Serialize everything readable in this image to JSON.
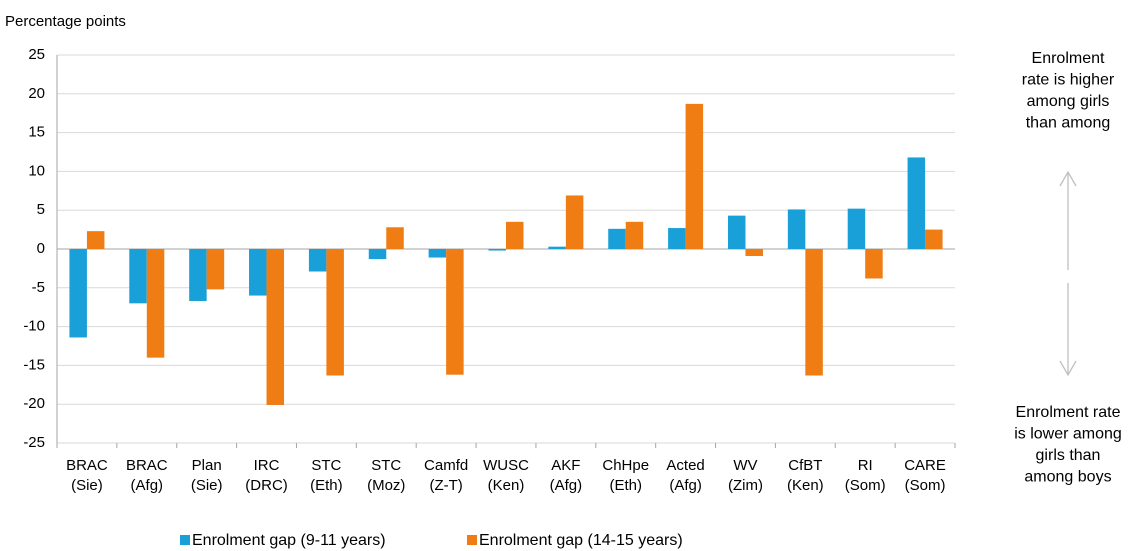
{
  "chart_data": {
    "type": "bar",
    "y_label": "Percentage points",
    "categories": [
      [
        "BRAC",
        "(Sie)"
      ],
      [
        "BRAC",
        "(Afg)"
      ],
      [
        "Plan",
        "(Sie)"
      ],
      [
        "IRC",
        "(DRC)"
      ],
      [
        "STC",
        "(Eth)"
      ],
      [
        "STC",
        "(Moz)"
      ],
      [
        "Camfd",
        "(Z-T)"
      ],
      [
        "WUSC",
        "(Ken)"
      ],
      [
        "AKF",
        "(Afg)"
      ],
      [
        "ChHpe",
        "(Eth)"
      ],
      [
        "Acted",
        "(Afg)"
      ],
      [
        "WV",
        "(Zim)"
      ],
      [
        "CfBT",
        "(Ken)"
      ],
      [
        "RI",
        "(Som)"
      ],
      [
        "CARE",
        "(Som)"
      ]
    ],
    "series": [
      {
        "name": "Enrolment gap (9-11 years)",
        "color": "#1aa0d8",
        "values": [
          -11.4,
          -7,
          -6.7,
          -6,
          -2.9,
          -1.3,
          -1.1,
          -0.2,
          0.3,
          2.6,
          2.7,
          4.3,
          5.1,
          5.2,
          11.8
        ]
      },
      {
        "name": "Enrolment gap (14-15 years)",
        "color": "#f07c14",
        "values": [
          2.3,
          -14,
          -5.2,
          -20.1,
          -16.3,
          2.8,
          -16.2,
          3.5,
          6.9,
          3.5,
          18.7,
          -0.9,
          -16.3,
          -3.8,
          2.5
        ]
      }
    ],
    "ylim": [
      -25,
      25
    ],
    "yticks": [
      -25,
      -20,
      -15,
      -10,
      -5,
      0,
      5,
      10,
      15,
      20,
      25
    ],
    "grid": true,
    "annotations": [
      [
        "Enrolment",
        "rate is higher",
        "among girls",
        "than among"
      ],
      [
        "Enrolment rate",
        "is lower among",
        "girls than",
        "among boys"
      ]
    ]
  }
}
